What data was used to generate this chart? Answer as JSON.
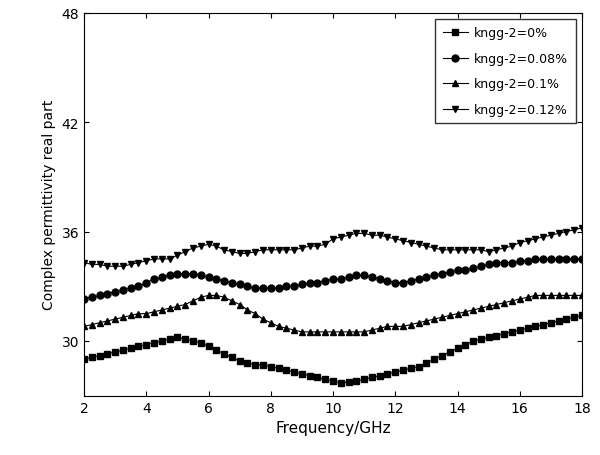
{
  "xlabel": "Frequency/GHz",
  "ylabel": "Complex permittivity real part",
  "xlim": [
    2,
    18
  ],
  "ylim": [
    27,
    48
  ],
  "yticks": [
    30,
    36,
    42,
    48
  ],
  "xticks": [
    2,
    4,
    6,
    8,
    10,
    12,
    14,
    16,
    18
  ],
  "line_color": "#000000",
  "background_color": "#ffffff",
  "marker_sizes": {
    "s": 4,
    "o": 5,
    "^": 5,
    "v": 5
  },
  "series": [
    {
      "label": "kngg-2=0%",
      "marker": "s",
      "x": [
        2.0,
        2.25,
        2.5,
        2.75,
        3.0,
        3.25,
        3.5,
        3.75,
        4.0,
        4.25,
        4.5,
        4.75,
        5.0,
        5.25,
        5.5,
        5.75,
        6.0,
        6.25,
        6.5,
        6.75,
        7.0,
        7.25,
        7.5,
        7.75,
        8.0,
        8.25,
        8.5,
        8.75,
        9.0,
        9.25,
        9.5,
        9.75,
        10.0,
        10.25,
        10.5,
        10.75,
        11.0,
        11.25,
        11.5,
        11.75,
        12.0,
        12.25,
        12.5,
        12.75,
        13.0,
        13.25,
        13.5,
        13.75,
        14.0,
        14.25,
        14.5,
        14.75,
        15.0,
        15.25,
        15.5,
        15.75,
        16.0,
        16.25,
        16.5,
        16.75,
        17.0,
        17.25,
        17.5,
        17.75,
        18.0
      ],
      "y": [
        29.0,
        29.1,
        29.2,
        29.3,
        29.4,
        29.5,
        29.6,
        29.7,
        29.8,
        29.9,
        30.0,
        30.1,
        30.2,
        30.1,
        30.0,
        29.9,
        29.7,
        29.5,
        29.3,
        29.1,
        28.9,
        28.8,
        28.7,
        28.7,
        28.6,
        28.5,
        28.4,
        28.3,
        28.2,
        28.1,
        28.0,
        27.9,
        27.8,
        27.7,
        27.75,
        27.8,
        27.9,
        28.0,
        28.1,
        28.2,
        28.3,
        28.4,
        28.5,
        28.6,
        28.8,
        29.0,
        29.2,
        29.4,
        29.6,
        29.8,
        30.0,
        30.1,
        30.2,
        30.3,
        30.4,
        30.5,
        30.6,
        30.7,
        30.8,
        30.9,
        31.0,
        31.1,
        31.2,
        31.3,
        31.4
      ]
    },
    {
      "label": "kngg-2=0.08%",
      "marker": "o",
      "x": [
        2.0,
        2.25,
        2.5,
        2.75,
        3.0,
        3.25,
        3.5,
        3.75,
        4.0,
        4.25,
        4.5,
        4.75,
        5.0,
        5.25,
        5.5,
        5.75,
        6.0,
        6.25,
        6.5,
        6.75,
        7.0,
        7.25,
        7.5,
        7.75,
        8.0,
        8.25,
        8.5,
        8.75,
        9.0,
        9.25,
        9.5,
        9.75,
        10.0,
        10.25,
        10.5,
        10.75,
        11.0,
        11.25,
        11.5,
        11.75,
        12.0,
        12.25,
        12.5,
        12.75,
        13.0,
        13.25,
        13.5,
        13.75,
        14.0,
        14.25,
        14.5,
        14.75,
        15.0,
        15.25,
        15.5,
        15.75,
        16.0,
        16.25,
        16.5,
        16.75,
        17.0,
        17.25,
        17.5,
        17.75,
        18.0
      ],
      "y": [
        32.3,
        32.4,
        32.5,
        32.6,
        32.7,
        32.8,
        32.9,
        33.0,
        33.2,
        33.4,
        33.5,
        33.6,
        33.7,
        33.7,
        33.7,
        33.6,
        33.5,
        33.4,
        33.3,
        33.2,
        33.1,
        33.0,
        32.9,
        32.9,
        32.9,
        32.9,
        33.0,
        33.0,
        33.1,
        33.2,
        33.2,
        33.3,
        33.4,
        33.4,
        33.5,
        33.6,
        33.6,
        33.5,
        33.4,
        33.3,
        33.2,
        33.2,
        33.3,
        33.4,
        33.5,
        33.6,
        33.7,
        33.8,
        33.9,
        33.9,
        34.0,
        34.1,
        34.2,
        34.3,
        34.3,
        34.3,
        34.4,
        34.4,
        34.5,
        34.5,
        34.5,
        34.5,
        34.5,
        34.5,
        34.5
      ]
    },
    {
      "label": "kngg-2=0.1%",
      "marker": "^",
      "x": [
        2.0,
        2.25,
        2.5,
        2.75,
        3.0,
        3.25,
        3.5,
        3.75,
        4.0,
        4.25,
        4.5,
        4.75,
        5.0,
        5.25,
        5.5,
        5.75,
        6.0,
        6.25,
        6.5,
        6.75,
        7.0,
        7.25,
        7.5,
        7.75,
        8.0,
        8.25,
        8.5,
        8.75,
        9.0,
        9.25,
        9.5,
        9.75,
        10.0,
        10.25,
        10.5,
        10.75,
        11.0,
        11.25,
        11.5,
        11.75,
        12.0,
        12.25,
        12.5,
        12.75,
        13.0,
        13.25,
        13.5,
        13.75,
        14.0,
        14.25,
        14.5,
        14.75,
        15.0,
        15.25,
        15.5,
        15.75,
        16.0,
        16.25,
        16.5,
        16.75,
        17.0,
        17.25,
        17.5,
        17.75,
        18.0
      ],
      "y": [
        30.8,
        30.9,
        31.0,
        31.1,
        31.2,
        31.3,
        31.4,
        31.5,
        31.5,
        31.6,
        31.7,
        31.8,
        31.9,
        32.0,
        32.2,
        32.4,
        32.5,
        32.5,
        32.4,
        32.2,
        32.0,
        31.7,
        31.5,
        31.2,
        31.0,
        30.8,
        30.7,
        30.6,
        30.5,
        30.5,
        30.5,
        30.5,
        30.5,
        30.5,
        30.5,
        30.5,
        30.5,
        30.6,
        30.7,
        30.8,
        30.8,
        30.8,
        30.9,
        31.0,
        31.1,
        31.2,
        31.3,
        31.4,
        31.5,
        31.6,
        31.7,
        31.8,
        31.9,
        32.0,
        32.1,
        32.2,
        32.3,
        32.4,
        32.5,
        32.5,
        32.5,
        32.5,
        32.5,
        32.5,
        32.5
      ]
    },
    {
      "label": "kngg-2=0.12%",
      "marker": "v",
      "x": [
        2.0,
        2.25,
        2.5,
        2.75,
        3.0,
        3.25,
        3.5,
        3.75,
        4.0,
        4.25,
        4.5,
        4.75,
        5.0,
        5.25,
        5.5,
        5.75,
        6.0,
        6.25,
        6.5,
        6.75,
        7.0,
        7.25,
        7.5,
        7.75,
        8.0,
        8.25,
        8.5,
        8.75,
        9.0,
        9.25,
        9.5,
        9.75,
        10.0,
        10.25,
        10.5,
        10.75,
        11.0,
        11.25,
        11.5,
        11.75,
        12.0,
        12.25,
        12.5,
        12.75,
        13.0,
        13.25,
        13.5,
        13.75,
        14.0,
        14.25,
        14.5,
        14.75,
        15.0,
        15.25,
        15.5,
        15.75,
        16.0,
        16.25,
        16.5,
        16.75,
        17.0,
        17.25,
        17.5,
        17.75,
        18.0
      ],
      "y": [
        34.3,
        34.2,
        34.2,
        34.1,
        34.1,
        34.1,
        34.2,
        34.3,
        34.4,
        34.5,
        34.5,
        34.5,
        34.7,
        34.9,
        35.1,
        35.2,
        35.3,
        35.2,
        35.0,
        34.9,
        34.8,
        34.8,
        34.9,
        35.0,
        35.0,
        35.0,
        35.0,
        35.0,
        35.1,
        35.2,
        35.2,
        35.3,
        35.6,
        35.7,
        35.8,
        35.9,
        35.9,
        35.8,
        35.8,
        35.7,
        35.6,
        35.5,
        35.4,
        35.3,
        35.2,
        35.1,
        35.0,
        35.0,
        35.0,
        35.0,
        35.0,
        35.0,
        34.9,
        35.0,
        35.1,
        35.2,
        35.4,
        35.5,
        35.6,
        35.7,
        35.8,
        35.9,
        36.0,
        36.1,
        36.2
      ]
    }
  ]
}
